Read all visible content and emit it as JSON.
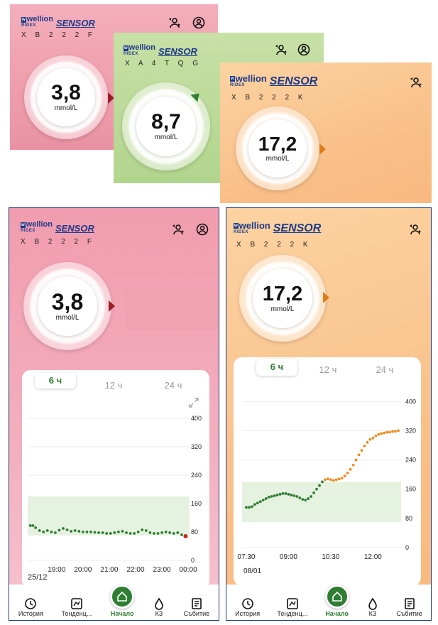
{
  "top_cards": [
    {
      "brand": "wellion",
      "ridex": "RIDEX",
      "sensor": "SENSOR",
      "serial": "X B 2 2 2 F",
      "value": "3,8",
      "unit": "mmol/L",
      "arrow_color": "#9b1b2a"
    },
    {
      "brand": "wellion",
      "ridex": "RIDEX",
      "sensor": "SENSOR",
      "serial": "X A 4 T Q G",
      "value": "8,7",
      "unit": "mmol/L",
      "arrow_color": "#2e7d32"
    },
    {
      "brand": "wellion",
      "ridex": "RIDEX",
      "sensor": "SENSOR",
      "serial": "X B 2 2 2 K",
      "value": "17,2",
      "unit": "mmol/L",
      "arrow_color": "#e07b1a"
    }
  ],
  "left_phone": {
    "brand": "wellion",
    "ridex": "RIDEX",
    "sensor": "SENSOR",
    "serial": "X B 2 2 2 F",
    "value": "3,8",
    "unit": "mmol/L",
    "tabs": [
      "6 ч",
      "12 ч",
      "24 ч"
    ],
    "date_label": "25/12",
    "nav": [
      "История",
      "Тенденц...",
      "Начало",
      "КЗ",
      "Събитие"
    ]
  },
  "right_phone": {
    "brand": "wellion",
    "ridex": "RIDEX",
    "sensor": "SENSOR",
    "serial": "X B 2 2 2 K",
    "value": "17,2",
    "unit": "mmol/L",
    "tabs": [
      "6 ч",
      "12 ч",
      "24 ч"
    ],
    "date_label": "08/01",
    "nav": [
      "История",
      "Тенденц...",
      "Начало",
      "КЗ",
      "Събитие"
    ]
  },
  "chart_data": [
    {
      "type": "scatter",
      "title": "",
      "x_ticks": [
        "19:00",
        "20:00",
        "21:00",
        "22:00",
        "23:00",
        "00:00"
      ],
      "y_ticks": [
        0,
        80,
        160,
        240,
        320,
        400
      ],
      "ylim": [
        0,
        420
      ],
      "target_range": [
        70,
        180
      ],
      "point_color": "#2e7d32",
      "last_point_color": "#c62828",
      "series": [
        {
          "x": [
            18.0,
            18.1,
            18.2,
            18.35,
            18.5,
            18.65,
            18.8,
            18.95,
            19.1,
            19.25,
            19.4,
            19.55,
            19.7,
            19.85,
            20.0,
            20.15,
            20.3,
            20.45,
            20.6,
            20.75,
            20.9,
            21.05,
            21.2,
            21.35,
            21.5,
            21.65,
            21.8,
            21.95,
            22.1,
            22.25,
            22.4,
            22.55,
            22.7,
            22.85,
            23.0,
            23.15,
            23.3,
            23.45,
            23.6,
            23.75,
            23.9
          ],
          "y": [
            98,
            98,
            92,
            84,
            80,
            84,
            80,
            78,
            85,
            90,
            86,
            82,
            84,
            82,
            80,
            80,
            80,
            79,
            78,
            78,
            76,
            76,
            78,
            80,
            82,
            78,
            76,
            76,
            80,
            86,
            84,
            78,
            76,
            76,
            78,
            80,
            78,
            76,
            78,
            72,
            68
          ]
        }
      ]
    },
    {
      "type": "scatter",
      "title": "",
      "x_ticks": [
        "07:30",
        "09:00",
        "10:30",
        "12:00"
      ],
      "y_ticks": [
        0,
        80,
        160,
        240,
        320,
        400
      ],
      "ylim": [
        0,
        420
      ],
      "target_range": [
        70,
        180
      ],
      "point_color": "#2e7d32",
      "high_point_color": "#ef8b1e",
      "series": [
        {
          "x": [
            7.5,
            7.6,
            7.7,
            7.8,
            7.9,
            8.0,
            8.1,
            8.2,
            8.3,
            8.4,
            8.5,
            8.6,
            8.7,
            8.8,
            8.9,
            9.0,
            9.1,
            9.2,
            9.3,
            9.4,
            9.5,
            9.6,
            9.7,
            9.8,
            9.9,
            10.0,
            10.1,
            10.2,
            10.3,
            10.4,
            10.5,
            10.6,
            10.7,
            10.8,
            10.9,
            11.0,
            11.1,
            11.2,
            11.3,
            11.4,
            11.5,
            11.6,
            11.7,
            11.8,
            11.9,
            12.0,
            12.1,
            12.2,
            12.3,
            12.4,
            12.5,
            12.6,
            12.7,
            12.8,
            12.9
          ],
          "y": [
            110,
            110,
            112,
            118,
            122,
            126,
            130,
            134,
            138,
            140,
            142,
            144,
            146,
            148,
            148,
            146,
            144,
            142,
            140,
            136,
            132,
            130,
            134,
            140,
            150,
            160,
            170,
            180,
            186,
            188,
            186,
            184,
            186,
            188,
            190,
            196,
            204,
            214,
            226,
            240,
            254,
            266,
            278,
            288,
            296,
            300,
            306,
            310,
            312,
            314,
            316,
            316,
            318,
            318,
            320
          ]
        }
      ]
    }
  ]
}
